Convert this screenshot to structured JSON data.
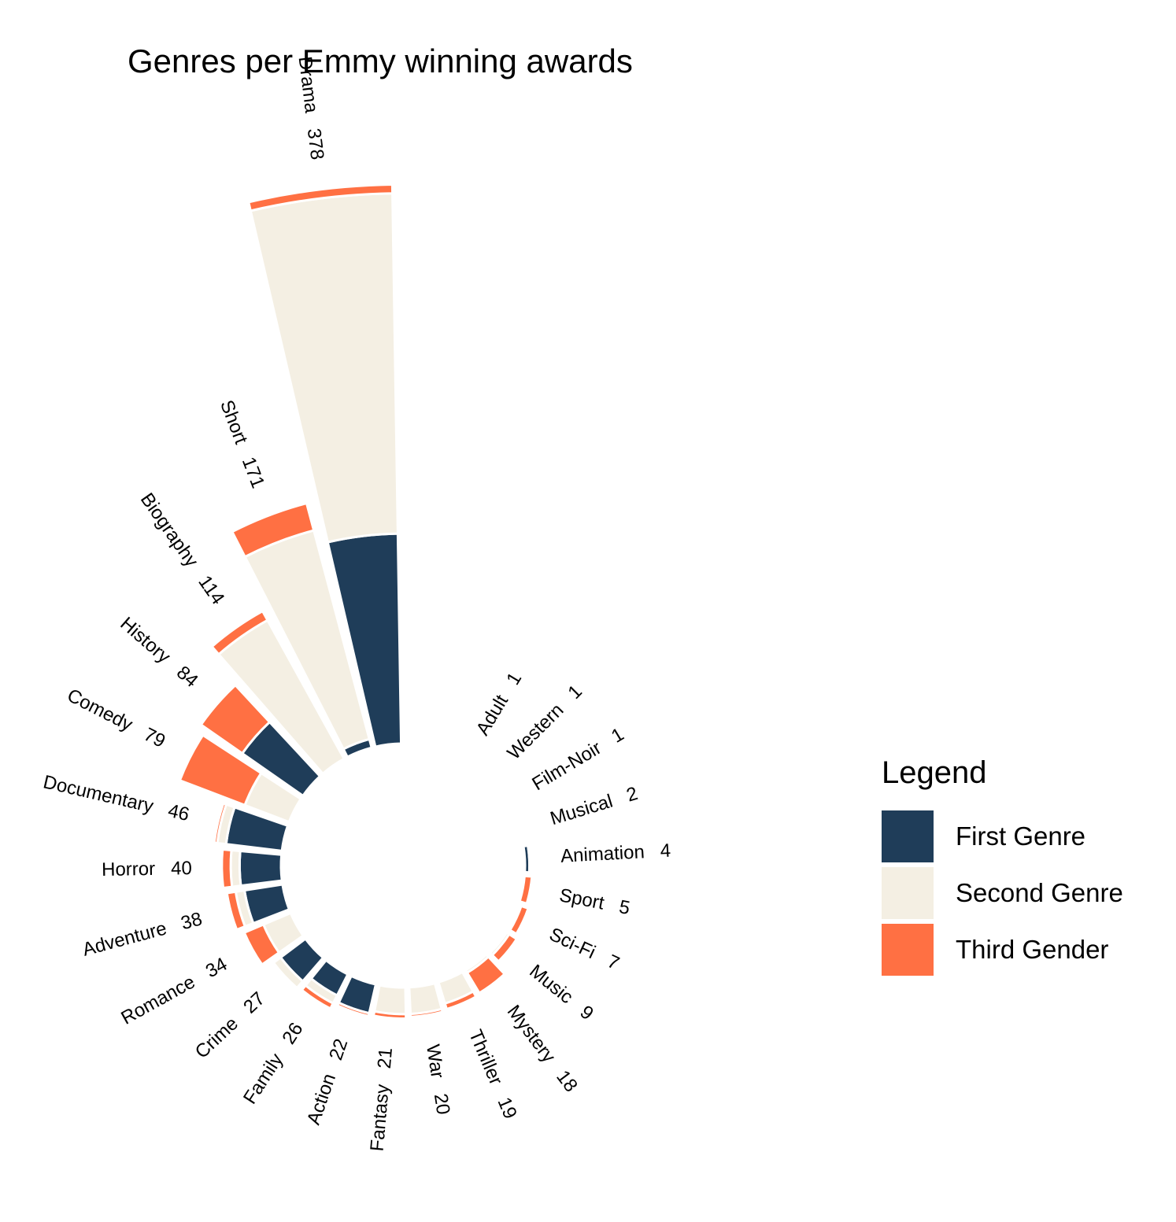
{
  "chart_data": {
    "type": "bar",
    "subtype": "circular-stacked",
    "title": "Genres per Emmy winning awards",
    "legend": {
      "title": "Legend",
      "position": "right",
      "entries": [
        "First Genre",
        "Second Genre",
        "Third Gender"
      ]
    },
    "colors": {
      "First Genre": "#1f3d59",
      "Second Genre": "#f4efe3",
      "Third Gender": "#ff7043"
    },
    "categories": [
      "Drama",
      "Short",
      "Biography",
      "History",
      "Comedy",
      "Documentary",
      "Horror",
      "Adventure",
      "Romance",
      "Crime",
      "Family",
      "Action",
      "Fantasy",
      "War",
      "Thriller",
      "Mystery",
      "Music",
      "Sci-Fi",
      "Sport",
      "Animation",
      "Musical",
      "Film-Noir",
      "Western",
      "Adult"
    ],
    "totals": [
      378,
      171,
      114,
      84,
      79,
      46,
      40,
      38,
      34,
      27,
      26,
      22,
      21,
      20,
      19,
      18,
      9,
      7,
      5,
      4,
      2,
      1,
      1,
      1
    ],
    "series": [
      {
        "name": "First Genre",
        "values": [
          142,
          6,
          0,
          50,
          0,
          38,
          28,
          26,
          0,
          21,
          16,
          20,
          0,
          0,
          0,
          0,
          1,
          1,
          0,
          3,
          1,
          0,
          1,
          0
        ]
      },
      {
        "name": "Second Genre",
        "values": [
          230,
          146,
          107,
          0,
          32,
          6,
          6,
          6,
          20,
          6,
          6,
          0,
          18,
          18,
          15,
          2,
          2,
          1,
          0,
          0,
          0,
          1,
          0,
          0
        ]
      },
      {
        "name": "Third Gender",
        "values": [
          6,
          19,
          7,
          34,
          47,
          2,
          6,
          6,
          14,
          0,
          4,
          2,
          3,
          2,
          4,
          16,
          6,
          5,
          5,
          1,
          1,
          0,
          0,
          1
        ]
      }
    ],
    "grid": false,
    "axes": false
  }
}
